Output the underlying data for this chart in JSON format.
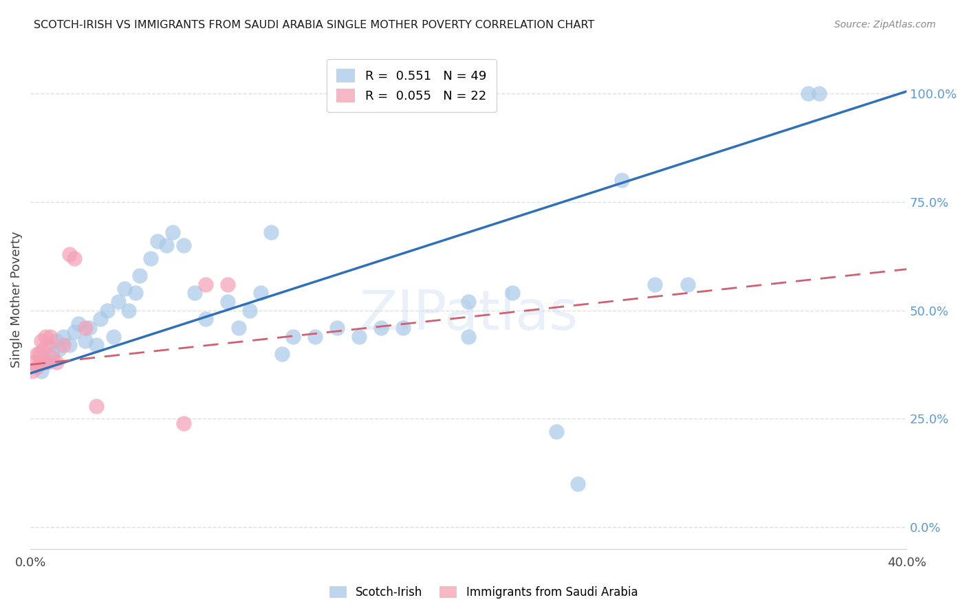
{
  "title": "SCOTCH-IRISH VS IMMIGRANTS FROM SAUDI ARABIA SINGLE MOTHER POVERTY CORRELATION CHART",
  "source": "Source: ZipAtlas.com",
  "ylabel": "Single Mother Poverty",
  "xlim": [
    0.0,
    0.4
  ],
  "ylim": [
    -0.05,
    1.1
  ],
  "right_yticks": [
    0.0,
    0.25,
    0.5,
    0.75,
    1.0
  ],
  "right_yticklabels": [
    "0.0%",
    "25.0%",
    "50.0%",
    "75.0%",
    "100.0%"
  ],
  "xticks": [
    0.0,
    0.05,
    0.1,
    0.15,
    0.2,
    0.25,
    0.3,
    0.35,
    0.4
  ],
  "xticklabels": [
    "0.0%",
    "",
    "",
    "",
    "",
    "",
    "",
    "",
    "40.0%"
  ],
  "scotch_irish_color": "#a8c8e8",
  "saudi_color": "#f4a0b5",
  "scotch_irish_R": 0.551,
  "scotch_irish_N": 49,
  "saudi_R": 0.055,
  "saudi_N": 22,
  "trend_blue": "#3070b8",
  "trend_pink": "#d06070",
  "legend_label_scotch": "Scotch-Irish",
  "legend_label_saudi": "Immigrants from Saudi Arabia",
  "watermark": "ZIPatlas",
  "scotch_irish_x": [
    0.005,
    0.008,
    0.01,
    0.012,
    0.013,
    0.015,
    0.018,
    0.02,
    0.022,
    0.025,
    0.027,
    0.03,
    0.032,
    0.035,
    0.038,
    0.04,
    0.043,
    0.045,
    0.048,
    0.05,
    0.055,
    0.058,
    0.062,
    0.065,
    0.07,
    0.075,
    0.08,
    0.09,
    0.095,
    0.1,
    0.105,
    0.11,
    0.115,
    0.12,
    0.13,
    0.14,
    0.15,
    0.16,
    0.17,
    0.2,
    0.2,
    0.22,
    0.24,
    0.25,
    0.27,
    0.285,
    0.3,
    0.355,
    0.36
  ],
  "scotch_irish_y": [
    0.36,
    0.38,
    0.4,
    0.43,
    0.41,
    0.44,
    0.42,
    0.45,
    0.47,
    0.43,
    0.46,
    0.42,
    0.48,
    0.5,
    0.44,
    0.52,
    0.55,
    0.5,
    0.54,
    0.58,
    0.62,
    0.66,
    0.65,
    0.68,
    0.65,
    0.54,
    0.48,
    0.52,
    0.46,
    0.5,
    0.54,
    0.68,
    0.4,
    0.44,
    0.44,
    0.46,
    0.44,
    0.46,
    0.46,
    0.44,
    0.52,
    0.54,
    0.22,
    0.1,
    0.8,
    0.56,
    0.56,
    1.0,
    1.0
  ],
  "saudi_x": [
    0.001,
    0.002,
    0.003,
    0.003,
    0.004,
    0.005,
    0.005,
    0.006,
    0.007,
    0.007,
    0.008,
    0.009,
    0.01,
    0.012,
    0.015,
    0.018,
    0.02,
    0.025,
    0.03,
    0.07,
    0.08,
    0.09
  ],
  "saudi_y": [
    0.36,
    0.38,
    0.4,
    0.37,
    0.4,
    0.38,
    0.43,
    0.41,
    0.44,
    0.38,
    0.42,
    0.44,
    0.39,
    0.38,
    0.42,
    0.63,
    0.62,
    0.46,
    0.28,
    0.24,
    0.56,
    0.56
  ],
  "grid_color": "#d8d8d8",
  "tick_color": "#5b9bd5",
  "background_color": "#ffffff"
}
